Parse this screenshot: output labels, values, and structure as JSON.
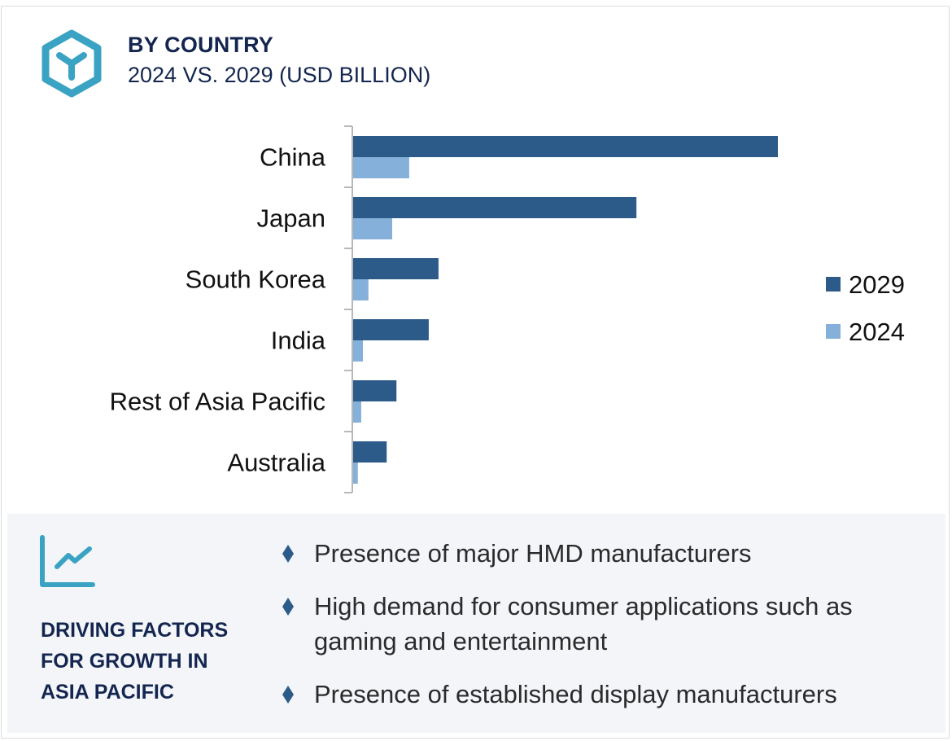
{
  "header": {
    "title": "BY COUNTRY",
    "subtitle": "2024 VS. 2029 (USD BILLION)",
    "icon": "hexagon-y-icon"
  },
  "colors": {
    "series_2029": "#2c5b8a",
    "series_2024": "#85b0d9",
    "accent": "#3aa3c4",
    "heading": "#14264f",
    "panel_bg": "#f3f5f9"
  },
  "chart_data": {
    "type": "bar",
    "orientation": "horizontal",
    "title": "BY COUNTRY 2024 VS. 2029 (USD BILLION)",
    "xlabel": "",
    "ylabel": "",
    "value_note": "No axis scale shown; values are relative, normalized so China 2029 = 100",
    "categories": [
      "China",
      "Japan",
      "South Korea",
      "India",
      "Rest of Asia Pacific",
      "Australia"
    ],
    "series": [
      {
        "name": "2029",
        "values": [
          100,
          66.7,
          20.1,
          17.8,
          10.2,
          7.9
        ]
      },
      {
        "name": "2024",
        "values": [
          13.2,
          9.2,
          3.6,
          2.3,
          1.9,
          1.1
        ]
      }
    ],
    "xlim": [
      0,
      100
    ],
    "grid": false,
    "legend": {
      "position": "right",
      "entries": [
        "2029",
        "2024"
      ]
    }
  },
  "factors_panel": {
    "icon": "trend-line-chart-icon",
    "title_lines": [
      "DRIVING FACTORS",
      "FOR GROWTH IN",
      "ASIA PACIFIC"
    ],
    "bullet_icon": "diamond-bullet-icon",
    "items": [
      "Presence of major HMD manufacturers",
      "High demand for consumer applications such as gaming and entertainment",
      "Presence of established display manufacturers"
    ]
  }
}
